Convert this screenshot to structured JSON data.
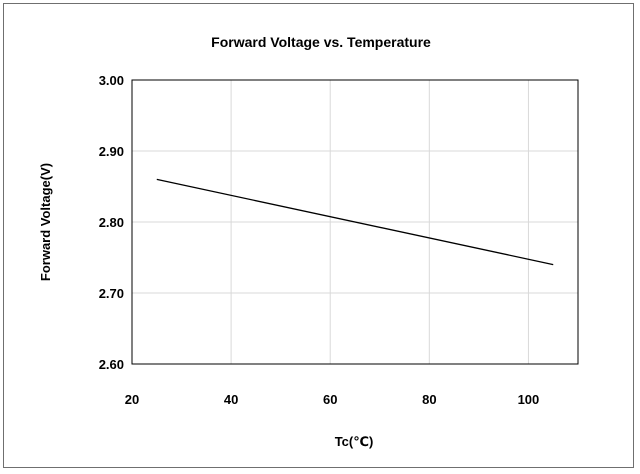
{
  "chart_data": {
    "type": "line",
    "title": "Forward Voltage vs. Temperature",
    "xlabel": "Tc(℃)",
    "ylabel": "Forward Voltage(V)",
    "xlim": [
      20,
      110
    ],
    "ylim": [
      2.6,
      3.0
    ],
    "xticks": [
      20,
      40,
      60,
      80,
      100
    ],
    "xtick_labels": [
      "20",
      "40",
      "60",
      "80",
      "100"
    ],
    "yticks": [
      2.6,
      2.7,
      2.8,
      2.9,
      3.0
    ],
    "ytick_labels": [
      "2.60",
      "2.70",
      "2.80",
      "2.90",
      "3.00"
    ],
    "grid": true,
    "series": [
      {
        "x": [
          25,
          105
        ],
        "y": [
          2.86,
          2.74
        ],
        "color": "#000000"
      }
    ]
  }
}
